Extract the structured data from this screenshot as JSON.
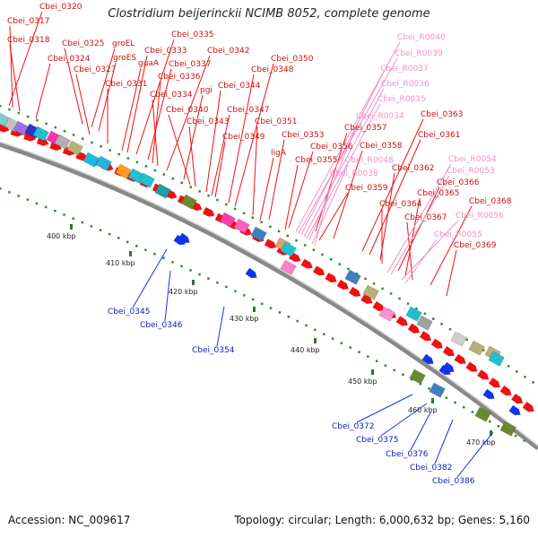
{
  "title": "Clostridium beijerinckii NCIMB 8052, complete genome",
  "footer": {
    "accession": "Accession: NC_009617",
    "summary": "Topology: circular; Length: 6,000,632 bp; Genes: 5,160"
  },
  "colors": {
    "forward_gene": "#ee1111",
    "reverse_gene": "#1133ee",
    "rna_label": "#f090c8",
    "backbone": "#888888",
    "scale_dots": "#2e8b2e"
  },
  "scale": {
    "unit": "kbp",
    "ticks": [
      "400 kbp",
      "410 kbp",
      "420 kbp",
      "430 kbp",
      "440 kbp",
      "450 kbp",
      "460 kbp",
      "470 kbp"
    ]
  },
  "labels_forward": [
    "Cbei_0320",
    "Cbei_0317",
    "Cbei_0318",
    "Cbei_0324",
    "Cbei_0325",
    "groEL",
    "groES",
    "Cbei_0327",
    "Cbei_0331",
    "guaA",
    "Cbei_0333",
    "Cbei_0335",
    "Cbei_0337",
    "Cbei_0336",
    "Cbei_0334",
    "Cbei_0342",
    "pgi",
    "Cbei_0340",
    "Cbei_0343",
    "Cbei_0344",
    "Cbei_0347",
    "Cbei_0349",
    "Cbei_0350",
    "Cbei_0348",
    "Cbei_0351",
    "Cbei_0353",
    "ligA",
    "Cbei_0356",
    "Cbei_0355",
    "Cbei_0357",
    "Cbei_0358",
    "Cbei_0359",
    "Cbei_0363",
    "Cbei_0361",
    "Cbei_0362",
    "Cbei_0366",
    "Cbei_0365",
    "Cbei_0364",
    "Cbei_0367",
    "Cbei_0368",
    "Cbei_0369"
  ],
  "labels_rna": [
    "Cbei_R0040",
    "Cbei_R0039",
    "Cbei_R0037",
    "Cbei_R0036",
    "Cbei_R0035",
    "Cbei_R0034",
    "Cbei_R0048",
    "Cbei_R0038",
    "Cbei_R0054",
    "Cbei_R0053",
    "Cbei_R0056",
    "Cbei_R0055"
  ],
  "labels_reverse": [
    "Cbei_0345",
    "Cbei_0346",
    "Cbei_0354",
    "Cbei_0372",
    "Cbei_0375",
    "Cbei_0376",
    "Cbei_0382",
    "Cbei_0386"
  ]
}
